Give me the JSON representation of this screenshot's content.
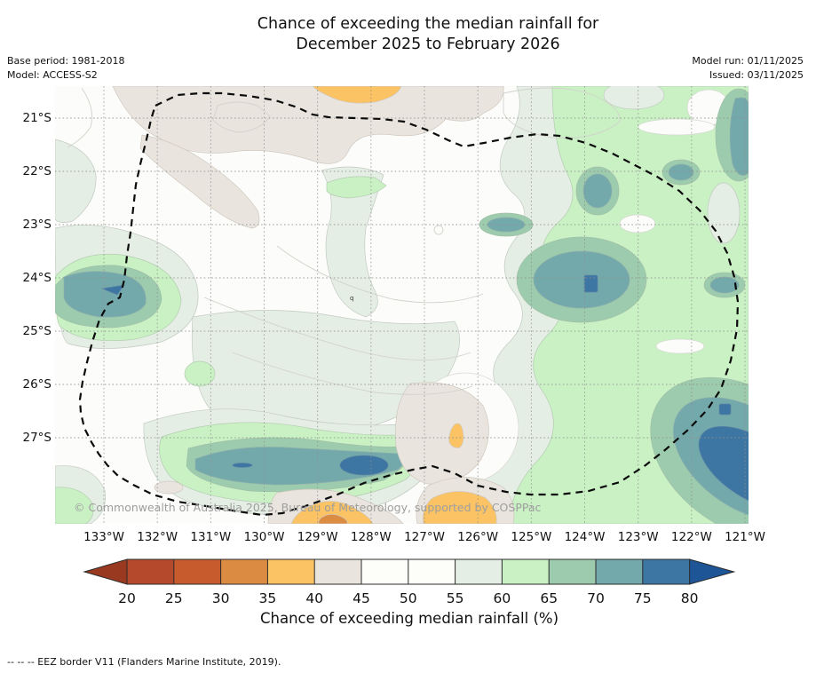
{
  "title": {
    "line1": "Chance of exceeding the median rainfall for",
    "line2": "December 2025 to February 2026"
  },
  "meta": {
    "base_period": "Base period: 1981-2018",
    "model": "Model: ACCESS-S2",
    "model_run": "Model run: 01/11/2025",
    "issued": "Issued: 03/11/2025"
  },
  "axes": {
    "lat_labels": [
      "21°S",
      "22°S",
      "23°S",
      "24°S",
      "25°S",
      "26°S",
      "27°S"
    ],
    "lon_labels": [
      "133°W",
      "132°W",
      "131°W",
      "130°W",
      "129°W",
      "128°W",
      "127°W",
      "126°W",
      "125°W",
      "124°W",
      "123°W",
      "122°W",
      "121°W"
    ]
  },
  "map": {
    "copyright": "© Commonwealth of Australia 2025, Bureau of Meteorology, supported by COSPPac",
    "stray_contour_label": "q",
    "border_name": "EEZ border (dashed)"
  },
  "colorbar": {
    "label": "Chance of exceeding median rainfall (%)",
    "tick_labels": [
      "20",
      "25",
      "30",
      "35",
      "40",
      "45",
      "50",
      "55",
      "60",
      "65",
      "70",
      "75",
      "80"
    ],
    "segment_colors": [
      "#b5492b",
      "#c75b2e",
      "#dc8c42",
      "#fbc364",
      "#e9e5de",
      "#fdfdfa",
      "#fdfdfa",
      "#e5eee4",
      "#c9f1c4",
      "#9ccbad",
      "#74a9ab",
      "#3d75a3"
    ],
    "arrow_left_color": "#993a20",
    "arrow_right_color": "#1e5596"
  },
  "footer": {
    "eez_note": "--  --  -- EEZ border V11 (Flanders Marine Institute, 2019)."
  },
  "chart_data": {
    "type": "heatmap",
    "subtype": "filled_contour_probability_map",
    "title": "Chance of exceeding the median rainfall for December 2025 to February 2026",
    "x_axis": {
      "label": "longitude",
      "ticks": [
        "133°W",
        "132°W",
        "131°W",
        "130°W",
        "129°W",
        "128°W",
        "127°W",
        "126°W",
        "125°W",
        "124°W",
        "123°W",
        "122°W",
        "121°W"
      ]
    },
    "y_axis": {
      "label": "latitude",
      "ticks": [
        "21°S",
        "22°S",
        "23°S",
        "24°S",
        "25°S",
        "26°S",
        "27°S"
      ]
    },
    "colorbar": {
      "label": "Chance of exceeding median rainfall (%)",
      "ticks": [
        20,
        25,
        30,
        35,
        40,
        45,
        50,
        55,
        60,
        65,
        70,
        75,
        80
      ],
      "units": "%",
      "extend": "both"
    },
    "levels_percent": [
      20,
      25,
      30,
      35,
      40,
      45,
      50,
      55,
      60,
      65,
      70,
      75,
      80
    ],
    "regions": [
      {
        "location": "133°W 24.2°S (west blob)",
        "value_percent": "70-80"
      },
      {
        "location": "131–128.5°W 27.3°S (south band)",
        "value_percent": "70-80"
      },
      {
        "location": "124.5°W 24.1°S (east-central blob)",
        "value_percent": "70-80"
      },
      {
        "location": "122–121°W 26–27.5°S (southeast corner)",
        "value_percent": "75-80"
      },
      {
        "location": "121°W 21–22.5°S (east edge)",
        "value_percent": "70-75"
      },
      {
        "location": "126–121°W broad eastern area",
        "value_percent": "60-70"
      },
      {
        "location": "128.5°W 20.5°S (north edge)",
        "value_percent": "35-40"
      },
      {
        "location": "133–128°W 20.5–21°S (north band)",
        "value_percent": "40-45"
      },
      {
        "location": "132.5–130.5°W 21.5–23°S (northwest diagonal band)",
        "value_percent": "40-45"
      },
      {
        "location": "126.7°W 26.3–27°S (small patch with spot)",
        "value_percent": "35-45"
      },
      {
        "location": "129°W 28°S (south edge spot)",
        "value_percent": "30-40"
      },
      {
        "location": "127°W 28°S (south edge spot)",
        "value_percent": "35-40"
      },
      {
        "location": "elsewhere",
        "value_percent": "45-60"
      }
    ],
    "overlays": [
      "dashed black closed EEZ border loop",
      "dotted lat/lon graticule"
    ]
  }
}
